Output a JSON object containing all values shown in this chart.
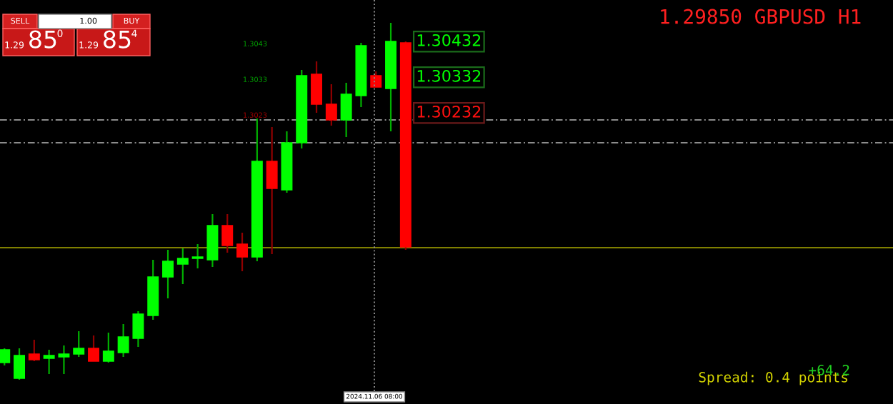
{
  "chart_data": {
    "type": "candlestick",
    "title": "1.29850 GBPUSD H1",
    "categories": [
      null,
      null,
      null,
      null,
      null,
      null,
      null,
      null,
      null,
      null,
      null,
      null,
      null,
      null,
      null,
      null,
      null,
      null,
      null,
      null,
      null,
      null,
      null,
      null,
      null,
      null,
      null,
      null
    ],
    "ohlc": [
      [
        1.29528,
        1.29568,
        1.2952,
        1.29564
      ],
      [
        1.29484,
        1.29568,
        1.2948,
        1.29548
      ],
      [
        1.29552,
        1.29592,
        1.29532,
        1.29536
      ],
      [
        1.2954,
        1.29564,
        1.29496,
        1.29548
      ],
      [
        1.29544,
        1.29576,
        1.29496,
        1.29552
      ],
      [
        1.29552,
        1.29616,
        1.29544,
        1.29568
      ],
      [
        1.29568,
        1.29604,
        1.29532,
        1.29532
      ],
      [
        1.29532,
        1.29612,
        1.29528,
        1.2956
      ],
      [
        1.29556,
        1.29636,
        1.29544,
        1.296
      ],
      [
        1.29596,
        1.29672,
        1.29572,
        1.29664
      ],
      [
        1.2966,
        1.29816,
        1.29648,
        1.29768
      ],
      [
        1.29768,
        1.29844,
        1.29708,
        1.29812
      ],
      [
        1.29804,
        1.29848,
        1.29748,
        1.2982
      ],
      [
        1.2982,
        1.2986,
        1.29792,
        1.29824
      ],
      [
        1.29816,
        1.29944,
        1.29796,
        1.29912
      ],
      [
        1.29912,
        1.29944,
        1.29836,
        1.29856
      ],
      [
        1.2986,
        1.29892,
        1.29784,
        1.29824
      ],
      [
        1.29824,
        1.30212,
        1.29812,
        1.30092
      ],
      [
        1.30092,
        1.30188,
        1.29832,
        1.30016
      ],
      [
        1.30012,
        1.30176,
        1.30004,
        1.30144
      ],
      [
        1.30144,
        1.30348,
        1.30128,
        1.30332
      ],
      [
        1.30336,
        1.30372,
        1.30228,
        1.30252
      ],
      [
        1.30252,
        1.30308,
        1.30192,
        1.30208
      ],
      [
        1.30208,
        1.30312,
        1.3016,
        1.3028
      ],
      [
        1.30276,
        1.30424,
        1.30244,
        1.30416
      ],
      [
        1.30332,
        1.30344,
        1.303,
        1.303
      ],
      [
        1.30296,
        1.3048,
        1.30176,
        1.30428
      ],
      [
        1.30424,
        1.30428,
        1.29844,
        1.29852
      ]
    ],
    "ylim": [
      1.29412,
      1.30544
    ],
    "yticks": [
      1.30432,
      1.30332,
      1.30232
    ],
    "tick_labels": "y",
    "grid": false,
    "ref_lines": [
      {
        "axis": "y",
        "value": 1.30208,
        "color": "#8c8c8c",
        "line_style": "dashed"
      },
      {
        "axis": "y",
        "value": 1.30144,
        "color": "#8c8c8c",
        "line_style": "dashed"
      },
      {
        "axis": "y",
        "value": 1.2985,
        "color": "#808000",
        "line_style": "solid"
      }
    ],
    "annotations": [
      "SELL",
      "1.00",
      "BUY",
      "1.29",
      "85",
      "0",
      "1.29",
      "85",
      "4",
      "1.3043",
      "1.3033",
      "1.3023",
      "2024.11.06 08:00",
      "Spread: 0.4 points",
      "+64.2"
    ]
  }
}
